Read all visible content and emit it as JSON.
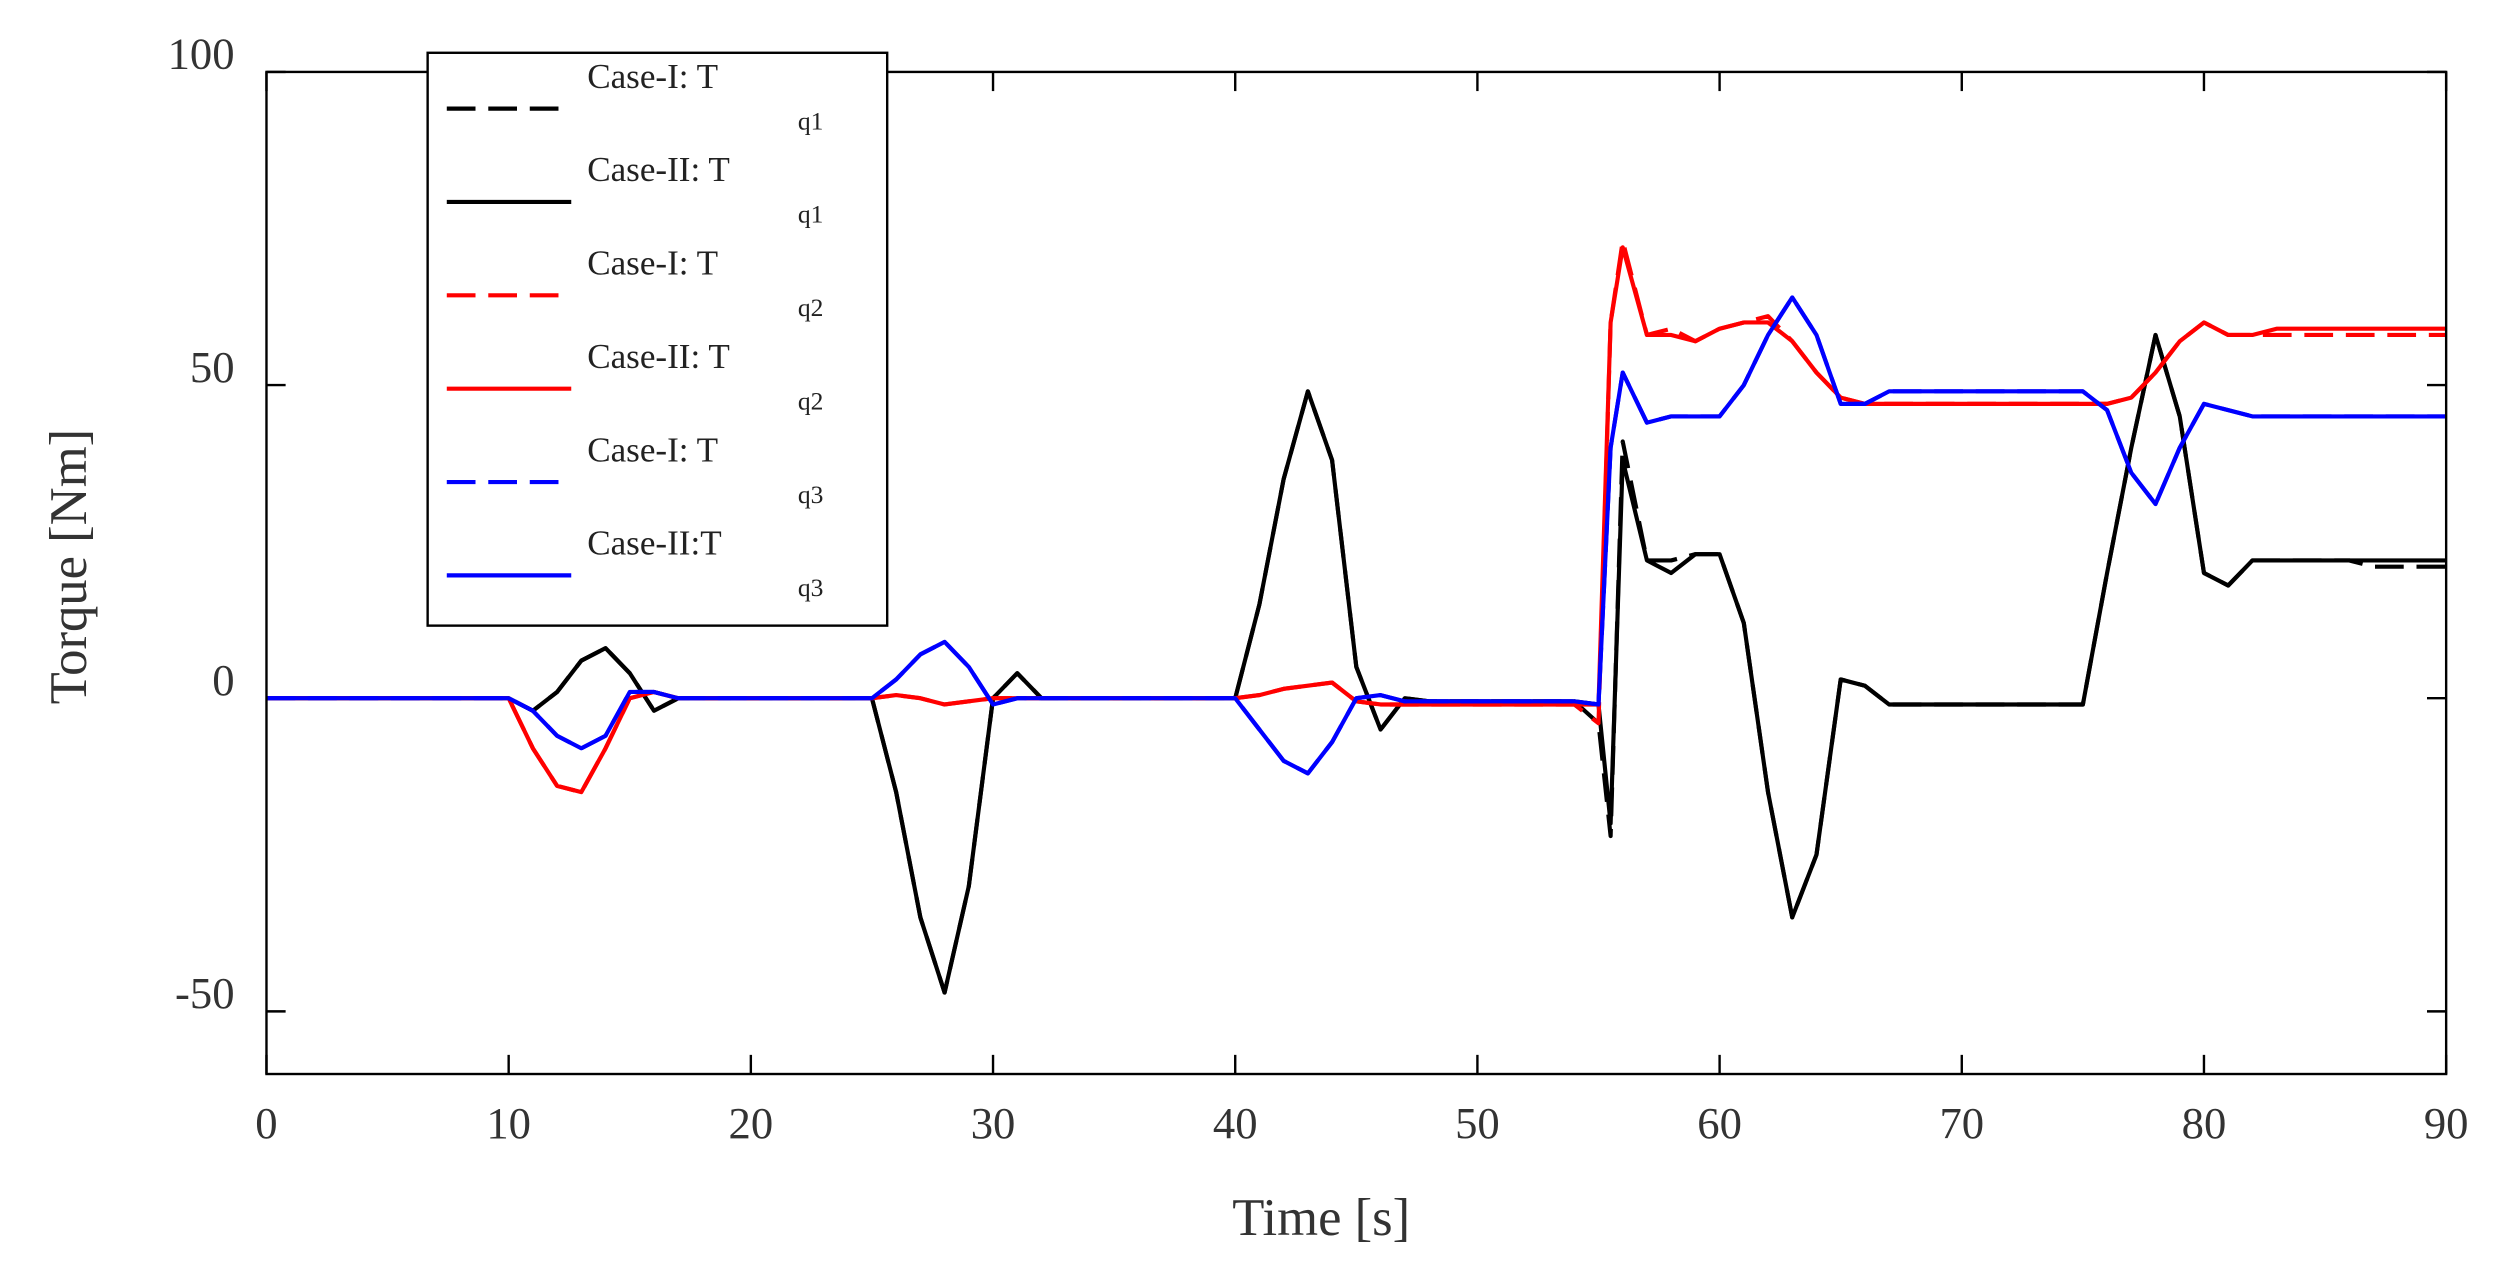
{
  "chart_data": {
    "type": "line",
    "xlabel": "Time [s]",
    "ylabel": "Torque [Nm]",
    "xlim": [
      0,
      90
    ],
    "ylim": [
      -60,
      100
    ],
    "xticks": [
      0,
      10,
      20,
      30,
      40,
      50,
      60,
      70,
      80,
      90
    ],
    "yticks": [
      -50,
      0,
      50,
      100
    ],
    "legend": "upper left",
    "x": [
      0,
      1,
      2,
      3,
      4,
      5,
      6,
      7,
      8,
      9,
      10,
      11,
      12,
      13,
      14,
      15,
      16,
      17,
      18,
      19,
      20,
      21,
      22,
      23,
      24,
      25,
      26,
      27,
      28,
      29,
      30,
      31,
      32,
      33,
      34,
      35,
      36,
      37,
      38,
      39,
      40,
      41,
      42,
      43,
      44,
      45,
      46,
      47,
      48,
      49,
      50,
      51,
      52,
      53,
      54,
      55,
      55.5,
      56,
      57,
      58,
      59,
      60,
      61,
      62,
      63,
      64,
      65,
      66,
      67,
      68,
      69,
      70,
      71,
      72,
      73,
      74,
      75,
      76,
      77,
      78,
      79,
      80,
      81,
      82,
      83,
      84,
      85,
      86,
      87,
      88,
      89,
      90
    ],
    "series": [
      {
        "name": "Case-I: T",
        "subscript": "q1",
        "color": "#000000",
        "dash": true,
        "values": [
          0,
          0,
          0,
          0,
          0,
          0,
          0,
          0,
          0,
          0,
          0,
          -2,
          1,
          6,
          8,
          4,
          -2,
          0,
          0,
          0,
          0,
          0,
          0,
          0,
          0,
          0,
          -15,
          -35,
          -47,
          -30,
          0,
          4,
          0,
          0,
          0,
          0,
          0,
          0,
          0,
          0,
          0,
          15,
          35,
          49,
          38,
          5,
          -5,
          0,
          -0.5,
          -0.5,
          -0.5,
          -0.5,
          -0.5,
          -0.5,
          -0.5,
          -4,
          -22,
          41,
          22,
          22,
          23,
          23,
          12,
          -15,
          -35,
          -25,
          3,
          2,
          -1,
          -1,
          -1,
          -1,
          -1,
          -1,
          -1,
          -1,
          -1,
          20,
          40,
          58,
          45,
          20,
          18,
          22,
          22,
          22,
          22,
          22,
          21,
          21,
          21,
          21
        ]
      },
      {
        "name": "Case-II: T",
        "subscript": "q1",
        "color": "#000000",
        "dash": false,
        "values": [
          0,
          0,
          0,
          0,
          0,
          0,
          0,
          0,
          0,
          0,
          0,
          -2,
          1,
          6,
          8,
          4,
          -2,
          0,
          0,
          0,
          0,
          0,
          0,
          0,
          0,
          0,
          -15,
          -35,
          -47,
          -30,
          0,
          4,
          0,
          0,
          0,
          0,
          0,
          0,
          0,
          0,
          0,
          15,
          35,
          49,
          38,
          5,
          -5,
          0,
          -0.5,
          -0.5,
          -0.5,
          -0.5,
          -0.5,
          -0.5,
          -0.5,
          -1,
          -20,
          38,
          22,
          20,
          23,
          23,
          12,
          -15,
          -35,
          -25,
          3,
          2,
          -1,
          -1,
          -1,
          -1,
          -1,
          -1,
          -1,
          -1,
          -1,
          20,
          40,
          58,
          45,
          20,
          18,
          22,
          22,
          22,
          22,
          22,
          22,
          22,
          22,
          22
        ]
      },
      {
        "name": "Case-I: T",
        "subscript": "q2",
        "color": "#ff0000",
        "dash": true,
        "values": [
          0,
          0,
          0,
          0,
          0,
          0,
          0,
          0,
          0,
          0,
          0,
          -8,
          -14,
          -15,
          -8,
          0,
          1,
          0,
          0,
          0,
          0,
          0,
          0,
          0,
          0,
          0,
          0.5,
          0,
          -1,
          -0.5,
          0,
          0,
          0,
          0,
          0,
          0,
          0,
          0,
          0,
          0,
          0,
          0.5,
          1.5,
          2,
          2.5,
          -0.5,
          -1,
          -1,
          -1,
          -1,
          -1,
          -1,
          -1,
          -1,
          -1,
          -4,
          60,
          73,
          58,
          59,
          57,
          59,
          60,
          61,
          57,
          52,
          48,
          47,
          47,
          47,
          47,
          47,
          47,
          47,
          47,
          47,
          47,
          47,
          48,
          52,
          57,
          60,
          58,
          58,
          58,
          58,
          58,
          58,
          58,
          58,
          58,
          58
        ]
      },
      {
        "name": "Case-II: T",
        "subscript": "q2",
        "color": "#ff0000",
        "dash": false,
        "values": [
          0,
          0,
          0,
          0,
          0,
          0,
          0,
          0,
          0,
          0,
          0,
          -8,
          -14,
          -15,
          -8,
          0,
          1,
          0,
          0,
          0,
          0,
          0,
          0,
          0,
          0,
          0,
          0.5,
          0,
          -1,
          -0.5,
          0,
          0,
          0,
          0,
          0,
          0,
          0,
          0,
          0,
          0,
          0,
          0.5,
          1.5,
          2,
          2.5,
          -0.5,
          -1,
          -1,
          -1,
          -1,
          -1,
          -1,
          -1,
          -1,
          -1,
          -1,
          60,
          72,
          58,
          58,
          57,
          59,
          60,
          60,
          57,
          52,
          48,
          47,
          47,
          47,
          47,
          47,
          47,
          47,
          47,
          47,
          47,
          47,
          48,
          52,
          57,
          60,
          58,
          58,
          59,
          59,
          59,
          59,
          59,
          59,
          59,
          59
        ]
      },
      {
        "name": "Case-I: T",
        "subscript": "q3",
        "color": "#0000ff",
        "dash": true,
        "values": [
          0,
          0,
          0,
          0,
          0,
          0,
          0,
          0,
          0,
          0,
          0,
          -2,
          -6,
          -8,
          -6,
          1,
          1,
          0,
          0,
          0,
          0,
          0,
          0,
          0,
          0,
          0,
          3,
          7,
          9,
          5,
          -1,
          0,
          0,
          0,
          0,
          0,
          0,
          0,
          0,
          0,
          0,
          -5,
          -10,
          -12,
          -7,
          0,
          0.5,
          -0.5,
          -0.5,
          -0.5,
          -0.5,
          -0.5,
          -0.5,
          -0.5,
          -0.5,
          -1,
          40,
          52,
          44,
          45,
          45,
          45,
          50,
          58,
          64,
          58,
          47,
          47,
          49,
          49,
          49,
          49,
          49,
          49,
          49,
          49,
          49,
          46,
          36,
          31,
          40,
          47,
          46,
          45,
          45,
          45,
          45,
          45,
          45,
          45,
          45,
          45
        ]
      },
      {
        "name": "Case-II:T",
        "subscript": "q3",
        "color": "#0000ff",
        "dash": false,
        "values": [
          0,
          0,
          0,
          0,
          0,
          0,
          0,
          0,
          0,
          0,
          0,
          -2,
          -6,
          -8,
          -6,
          1,
          1,
          0,
          0,
          0,
          0,
          0,
          0,
          0,
          0,
          0,
          3,
          7,
          9,
          5,
          -1,
          0,
          0,
          0,
          0,
          0,
          0,
          0,
          0,
          0,
          0,
          -5,
          -10,
          -12,
          -7,
          0,
          0.5,
          -0.5,
          -0.5,
          -0.5,
          -0.5,
          -0.5,
          -0.5,
          -0.5,
          -0.5,
          -1,
          40,
          52,
          44,
          45,
          45,
          45,
          50,
          58,
          64,
          58,
          47,
          47,
          49,
          49,
          49,
          49,
          49,
          49,
          49,
          49,
          49,
          46,
          36,
          31,
          40,
          47,
          46,
          45,
          45,
          45,
          45,
          45,
          45,
          45,
          45,
          45
        ]
      }
    ]
  }
}
